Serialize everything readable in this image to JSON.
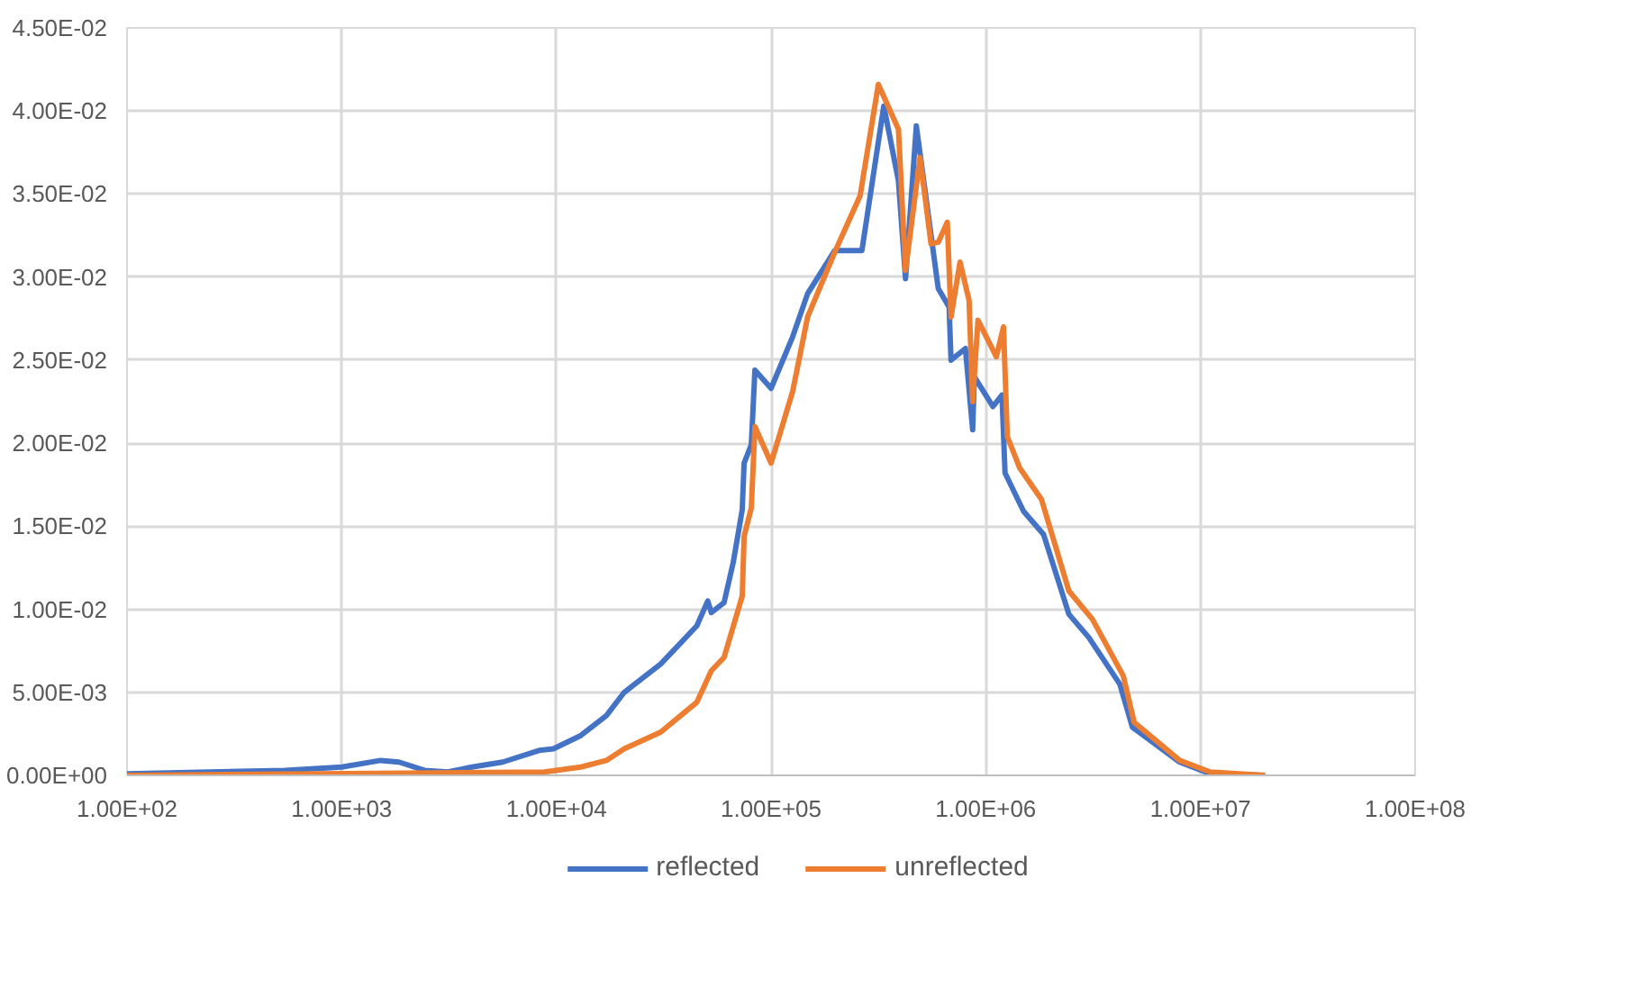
{
  "chart_data": {
    "type": "line",
    "log": "x",
    "grid": true,
    "legend": "bottom",
    "marker": "none",
    "line_style": "solid",
    "xlim": [
      100,
      100000000
    ],
    "ylim": [
      0,
      0.045
    ],
    "xticks": [
      {
        "value": 100,
        "label": "1.00E+02"
      },
      {
        "value": 1000,
        "label": "1.00E+03"
      },
      {
        "value": 10000,
        "label": "1.00E+04"
      },
      {
        "value": 100000,
        "label": "1.00E+05"
      },
      {
        "value": 1000000,
        "label": "1.00E+06"
      },
      {
        "value": 10000000,
        "label": "1.00E+07"
      },
      {
        "value": 100000000,
        "label": "1.00E+08"
      }
    ],
    "yticks": [
      {
        "value": 0,
        "label": "0.00E+00"
      },
      {
        "value": 0.005,
        "label": "5.00E-03"
      },
      {
        "value": 0.01,
        "label": "1.00E-02"
      },
      {
        "value": 0.015,
        "label": "1.50E-02"
      },
      {
        "value": 0.02,
        "label": "2.00E-02"
      },
      {
        "value": 0.025,
        "label": "2.50E-02"
      },
      {
        "value": 0.03,
        "label": "3.00E-02"
      },
      {
        "value": 0.035,
        "label": "3.50E-02"
      },
      {
        "value": 0.04,
        "label": "4.00E-02"
      },
      {
        "value": 0.045,
        "label": "4.50E-02"
      }
    ],
    "series": [
      {
        "name": "reflected",
        "color": "#4472c4",
        "x": [
          100,
          543,
          1000,
          1520,
          1850,
          2430,
          3130,
          4040,
          5620,
          8300,
          9690,
          13000,
          17100,
          20700,
          30600,
          45100,
          50700,
          52700,
          60400,
          66600,
          73400,
          74900,
          80900,
          84100,
          100000,
          126000,
          148000,
          198000,
          265000,
          335000,
          392000,
          423000,
          475000,
          601000,
          675000,
          689000,
          804000,
          869000,
          885000,
          977000,
          1080000,
          1190000,
          1230000,
          1500000,
          1860000,
          2440000,
          3020000,
          4210000,
          4820000,
          8000000,
          11100000,
          20000000
        ],
        "values": [
          0.0001,
          0.0003,
          0.0005,
          0.0009,
          0.0008,
          0.0003,
          0.0002,
          0.0005,
          0.0008,
          0.0015,
          0.0016,
          0.0024,
          0.0036,
          0.005,
          0.0067,
          0.009,
          0.0105,
          0.0098,
          0.0104,
          0.0128,
          0.016,
          0.0188,
          0.0199,
          0.0244,
          0.0233,
          0.0264,
          0.029,
          0.0316,
          0.0316,
          0.0403,
          0.0358,
          0.0299,
          0.0391,
          0.0293,
          0.0282,
          0.025,
          0.0257,
          0.0208,
          0.024,
          0.0231,
          0.0222,
          0.0229,
          0.0182,
          0.0159,
          0.0145,
          0.0097,
          0.0083,
          0.0055,
          0.0029,
          0.0008,
          0.0001,
          0.0
        ]
      },
      {
        "name": "unreflected",
        "color": "#ed7d31",
        "x": [
          100,
          8790,
          13000,
          17100,
          20700,
          30600,
          45100,
          52700,
          60400,
          73400,
          74900,
          80900,
          84100,
          100000,
          126000,
          148000,
          198000,
          260000,
          316000,
          392000,
          423000,
          494000,
          556000,
          601000,
          662000,
          689000,
          759000,
          836000,
          869000,
          920000,
          1120000,
          1210000,
          1260000,
          1440000,
          1820000,
          2440000,
          3140000,
          4370000,
          4910000,
          8000000,
          11100000,
          20000000
        ],
        "values": [
          0.0,
          0.0002,
          0.0005,
          0.0009,
          0.0016,
          0.0026,
          0.0044,
          0.0063,
          0.0071,
          0.0108,
          0.0144,
          0.0161,
          0.021,
          0.0188,
          0.0231,
          0.0276,
          0.0315,
          0.0349,
          0.0416,
          0.0389,
          0.0304,
          0.0372,
          0.032,
          0.0321,
          0.0333,
          0.0276,
          0.0309,
          0.0286,
          0.0225,
          0.0274,
          0.0252,
          0.027,
          0.0204,
          0.0185,
          0.0166,
          0.0111,
          0.0094,
          0.006,
          0.0032,
          0.0009,
          0.0002,
          0.0
        ]
      }
    ]
  }
}
